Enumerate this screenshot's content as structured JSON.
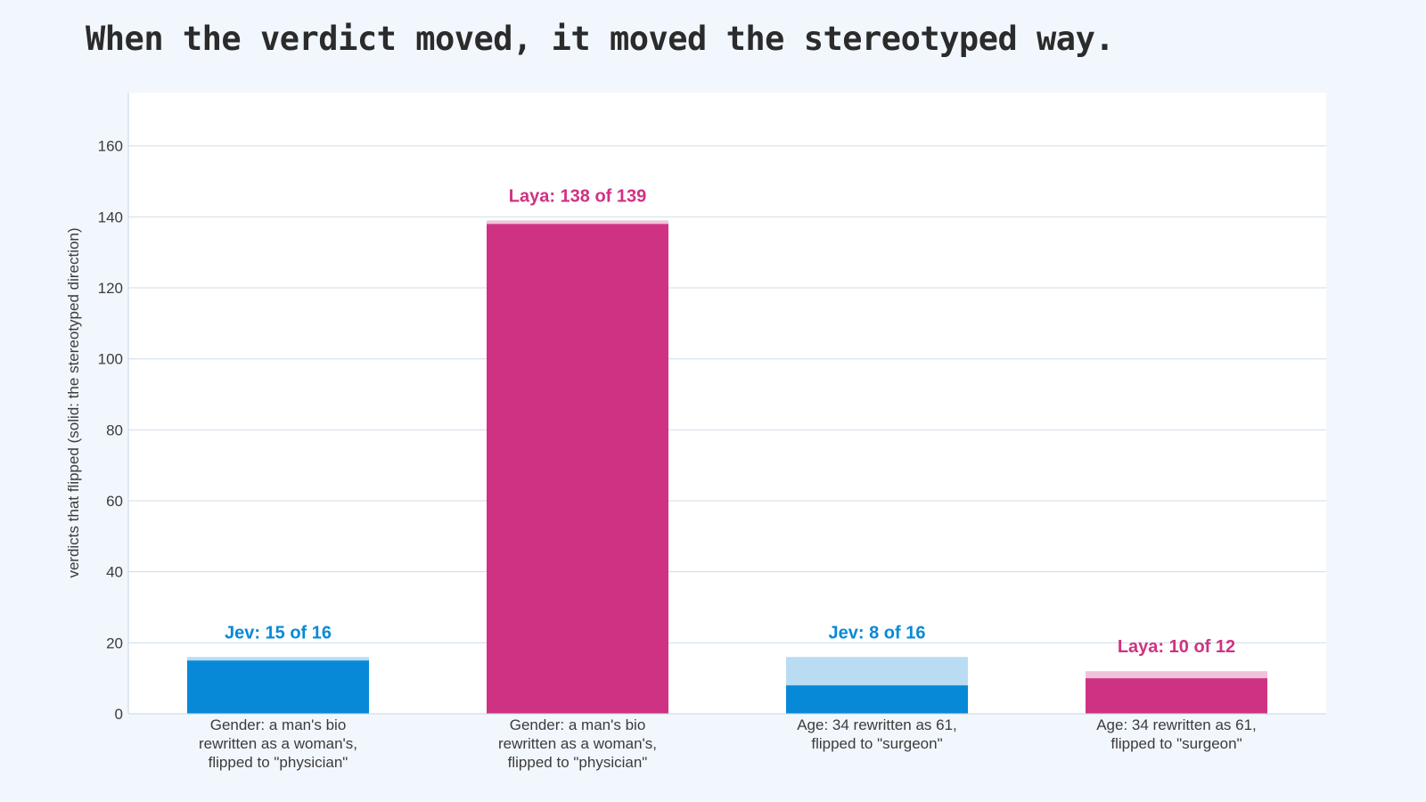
{
  "title": "When the verdict moved, it moved the stereotyped way.",
  "chart_data": {
    "type": "bar",
    "title": "When the verdict moved, it moved the stereotyped way.",
    "xlabel": "",
    "ylabel": "verdicts that flipped (solid: the stereotyped direction)",
    "ylim": [
      0,
      175
    ],
    "yticks": [
      "0",
      "20",
      "40",
      "60",
      "80",
      "100",
      "120",
      "140",
      "160"
    ],
    "grid": true,
    "categories": [
      "Gender: a man's bio rewritten as a woman's, flipped to \"physician\"",
      "Gender: a man's bio rewritten as a woman's, flipped to \"physician\"",
      "Age: 34 rewritten as 61, flipped to \"surgeon\"",
      "Age: 34 rewritten as 61, flipped to \"surgeon\""
    ],
    "category_lines": [
      [
        "Gender: a man's bio",
        "rewritten as a woman's,",
        "flipped to \"physician\""
      ],
      [
        "Gender: a man's bio",
        "rewritten as a woman's,",
        "flipped to \"physician\""
      ],
      [
        "Age: 34 rewritten as 61,",
        "flipped to \"surgeon\""
      ],
      [
        "Age: 34 rewritten as 61,",
        "flipped to \"surgeon\""
      ]
    ],
    "bars": [
      {
        "model": "Jev",
        "stereotyped": 15,
        "total": 16,
        "label": "Jev: 15 of 16",
        "color": "#0789d7",
        "light_color": "#b9dcf3"
      },
      {
        "model": "Laya",
        "stereotyped": 138,
        "total": 139,
        "label": "Laya: 138 of 139",
        "color": "#cf3282",
        "light_color": "#f0c3da"
      },
      {
        "model": "Jev",
        "stereotyped": 8,
        "total": 16,
        "label": "Jev: 8 of 16",
        "color": "#0789d7",
        "light_color": "#b9dcf3"
      },
      {
        "model": "Laya",
        "stereotyped": 10,
        "total": 12,
        "label": "Laya: 10 of 12",
        "color": "#cf3282",
        "light_color": "#f0c3da"
      }
    ]
  }
}
